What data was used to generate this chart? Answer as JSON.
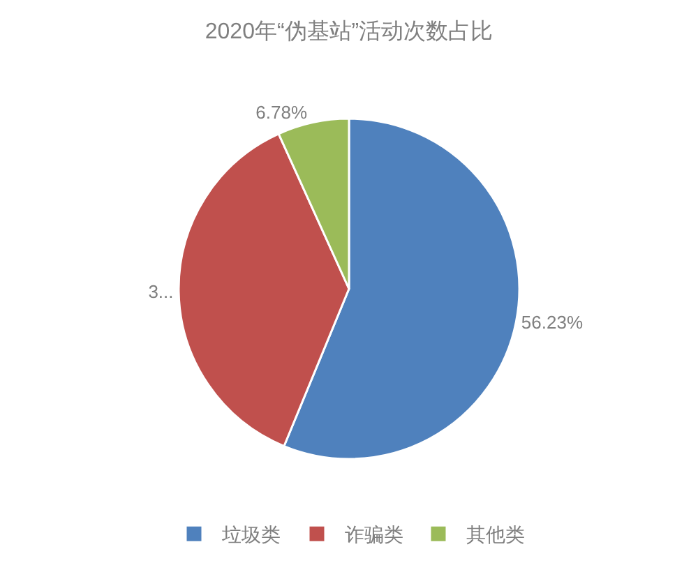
{
  "chart_data": {
    "type": "pie",
    "title": "2020年“伪基站”活动次数占比",
    "categories": [
      "垃圾类",
      "诈骗类",
      "其他类"
    ],
    "values": [
      56.23,
      36.99,
      6.78
    ],
    "colors": [
      "#4f81bd",
      "#c0504d",
      "#9bbb59"
    ],
    "value_labels": [
      "56.23%",
      "3...",
      "6.78%"
    ],
    "legend": "bottom"
  }
}
